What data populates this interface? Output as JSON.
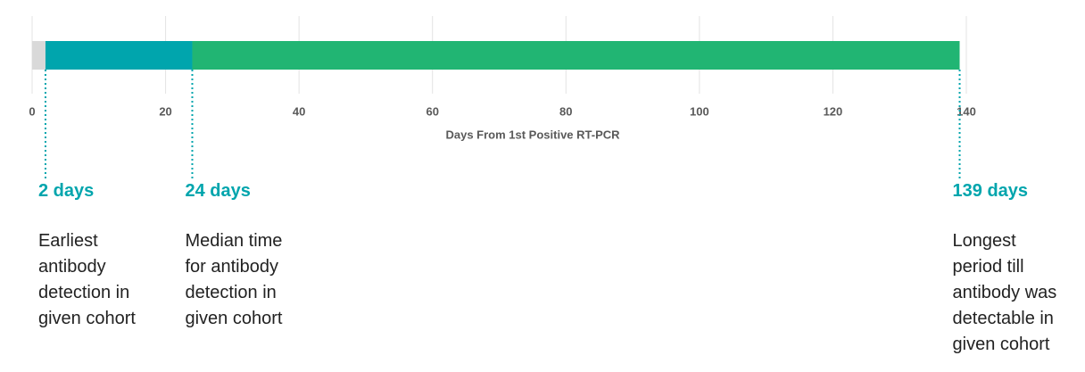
{
  "chart_data": {
    "type": "bar",
    "x_label": "Days From 1st Positive RT-PCR",
    "values": [
      2,
      24,
      139
    ],
    "value_labels": [
      "2 days",
      "24 days",
      "139 days"
    ],
    "descriptions": [
      [
        "Earliest",
        "antibody",
        "detection in",
        "given cohort"
      ],
      [
        "Median time",
        "for antibody",
        "detection in",
        "given cohort"
      ],
      [
        "Longest",
        "period till",
        "antibody was",
        "detectable in",
        "given cohort"
      ]
    ],
    "colors": [
      "#d9d9d9",
      "#00a5ad",
      "#21b573"
    ],
    "label_color": "#00a5ad",
    "xlim": [
      0,
      140
    ],
    "xticks": [
      0,
      20,
      40,
      60,
      80,
      100,
      120,
      140
    ],
    "grid": true
  }
}
